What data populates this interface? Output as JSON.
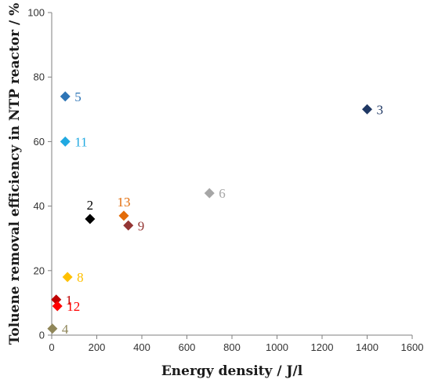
{
  "chart_data": {
    "type": "scatter",
    "title": "",
    "xlabel": "Energy density / J/l",
    "ylabel": "Toluene removal efficiency in NTP reactor / %",
    "xlim": [
      0,
      1600
    ],
    "ylim": [
      0,
      100
    ],
    "xticks": [
      0,
      200,
      400,
      600,
      800,
      1000,
      1200,
      1400,
      1600
    ],
    "yticks": [
      0,
      20,
      40,
      60,
      80,
      100
    ],
    "grid": false,
    "legend": "none",
    "marker": "diamond",
    "points": [
      {
        "label": "1",
        "x": 20,
        "y": 11,
        "color": "#c00000",
        "label_pos": "right"
      },
      {
        "label": "2",
        "x": 170,
        "y": 36,
        "color": "#000000",
        "label_pos": "above"
      },
      {
        "label": "3",
        "x": 1400,
        "y": 70,
        "color": "#1f3864",
        "label_pos": "right"
      },
      {
        "label": "4",
        "x": 3,
        "y": 2,
        "color": "#8f8659",
        "label_pos": "right"
      },
      {
        "label": "5",
        "x": 60,
        "y": 74,
        "color": "#2e75b6",
        "label_pos": "right"
      },
      {
        "label": "6",
        "x": 700,
        "y": 44,
        "color": "#a6a6a6",
        "label_pos": "right"
      },
      {
        "label": "8",
        "x": 70,
        "y": 18,
        "color": "#ffc000",
        "label_pos": "right"
      },
      {
        "label": "9",
        "x": 340,
        "y": 34,
        "color": "#943634",
        "label_pos": "right"
      },
      {
        "label": "11",
        "x": 60,
        "y": 60,
        "color": "#21a9e1",
        "label_pos": "right"
      },
      {
        "label": "12",
        "x": 25,
        "y": 9,
        "color": "#ff0000",
        "label_pos": "right"
      },
      {
        "label": "13",
        "x": 320,
        "y": 37,
        "color": "#e36c09",
        "label_pos": "above"
      }
    ]
  }
}
